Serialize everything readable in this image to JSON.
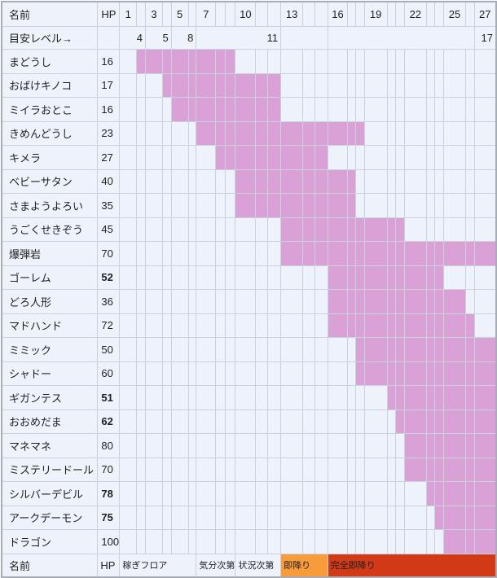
{
  "colors": {
    "pink": "#d9a1d6",
    "orange": "#f89b3a",
    "red": "#d23a17",
    "cell_bg": "#eef3fb",
    "grid_line": "#c9d2de",
    "outer_border": "#a6adb5"
  },
  "header": {
    "name_label": "名前",
    "hp_label": "HP"
  },
  "grid": {
    "floor_count": 27,
    "floor_labels": {
      "1": "1",
      "3": "3",
      "5": "5",
      "7": "7",
      "10": "10",
      "13": "13",
      "16": "16",
      "19": "19",
      "22": "22",
      "25": "25",
      "27": "27"
    }
  },
  "level_row": {
    "label": "目安レベル→",
    "cells": [
      {
        "span": 2,
        "value": "4"
      },
      {
        "span": 2,
        "value": "5"
      },
      {
        "span": 2,
        "value": "8"
      },
      {
        "span": 6,
        "value": "11"
      },
      {
        "span": 3,
        "value": ""
      },
      {
        "span": 11,
        "value": ""
      },
      {
        "span": 1,
        "value": "17"
      }
    ]
  },
  "monsters": [
    {
      "name": "まどうし",
      "hp": "16",
      "bold": false,
      "floor_from": 2,
      "floor_to": 9
    },
    {
      "name": "おばけキノコ",
      "hp": "17",
      "bold": false,
      "floor_from": 4,
      "floor_to": 12
    },
    {
      "name": "ミイラおとこ",
      "hp": "16",
      "bold": false,
      "floor_from": 5,
      "floor_to": 12
    },
    {
      "name": "きめんどうし",
      "hp": "23",
      "bold": false,
      "floor_from": 7,
      "floor_to": 18
    },
    {
      "name": "キメラ",
      "hp": "27",
      "bold": false,
      "floor_from": 8,
      "floor_to": 15
    },
    {
      "name": "ベビーサタン",
      "hp": "40",
      "bold": false,
      "floor_from": 10,
      "floor_to": 17
    },
    {
      "name": "さまようよろい",
      "hp": "35",
      "bold": false,
      "floor_from": 10,
      "floor_to": 17
    },
    {
      "name": "うごくせきぞう",
      "hp": "45",
      "bold": false,
      "floor_from": 13,
      "floor_to": 21
    },
    {
      "name": "爆弾岩",
      "hp": "70",
      "bold": false,
      "floor_from": 13,
      "floor_to": 27
    },
    {
      "name": "ゴーレム",
      "hp": "52",
      "bold": true,
      "floor_from": 16,
      "floor_to": 24
    },
    {
      "name": "どろ人形",
      "hp": "36",
      "bold": false,
      "floor_from": 16,
      "floor_to": 25
    },
    {
      "name": "マドハンド",
      "hp": "72",
      "bold": false,
      "floor_from": 16,
      "floor_to": 26
    },
    {
      "name": "ミミック",
      "hp": "50",
      "bold": false,
      "floor_from": 18,
      "floor_to": 27
    },
    {
      "name": "シャドー",
      "hp": "60",
      "bold": false,
      "floor_from": 18,
      "floor_to": 27
    },
    {
      "name": "ギガンテス",
      "hp": "51",
      "bold": true,
      "floor_from": 20,
      "floor_to": 27
    },
    {
      "name": "おおめだま",
      "hp": "62",
      "bold": true,
      "floor_from": 21,
      "floor_to": 27
    },
    {
      "name": "マネマネ",
      "hp": "80",
      "bold": false,
      "floor_from": 22,
      "floor_to": 27
    },
    {
      "name": "ミステリードール",
      "hp": "70",
      "bold": false,
      "floor_from": 22,
      "floor_to": 27
    },
    {
      "name": "シルバーデビル",
      "hp": "78",
      "bold": true,
      "floor_from": 23,
      "floor_to": 27
    },
    {
      "name": "アークデーモン",
      "hp": "75",
      "bold": true,
      "floor_from": 24,
      "floor_to": 27
    },
    {
      "name": "ドラゴン",
      "hp": "100",
      "bold": false,
      "floor_from": 25,
      "floor_to": 27
    }
  ],
  "footer": {
    "name_label": "名前",
    "hp_label": "HP",
    "cells": [
      {
        "span": 6,
        "label": "稼ぎフロア",
        "type": "plain"
      },
      {
        "span": 3,
        "label": "気分次第",
        "type": "plain"
      },
      {
        "span": 3,
        "label": "状況次第",
        "type": "plain"
      },
      {
        "span": 3,
        "label": "即降り",
        "type": "orange"
      },
      {
        "span": 12,
        "label": "完全即降り",
        "type": "red"
      }
    ]
  }
}
